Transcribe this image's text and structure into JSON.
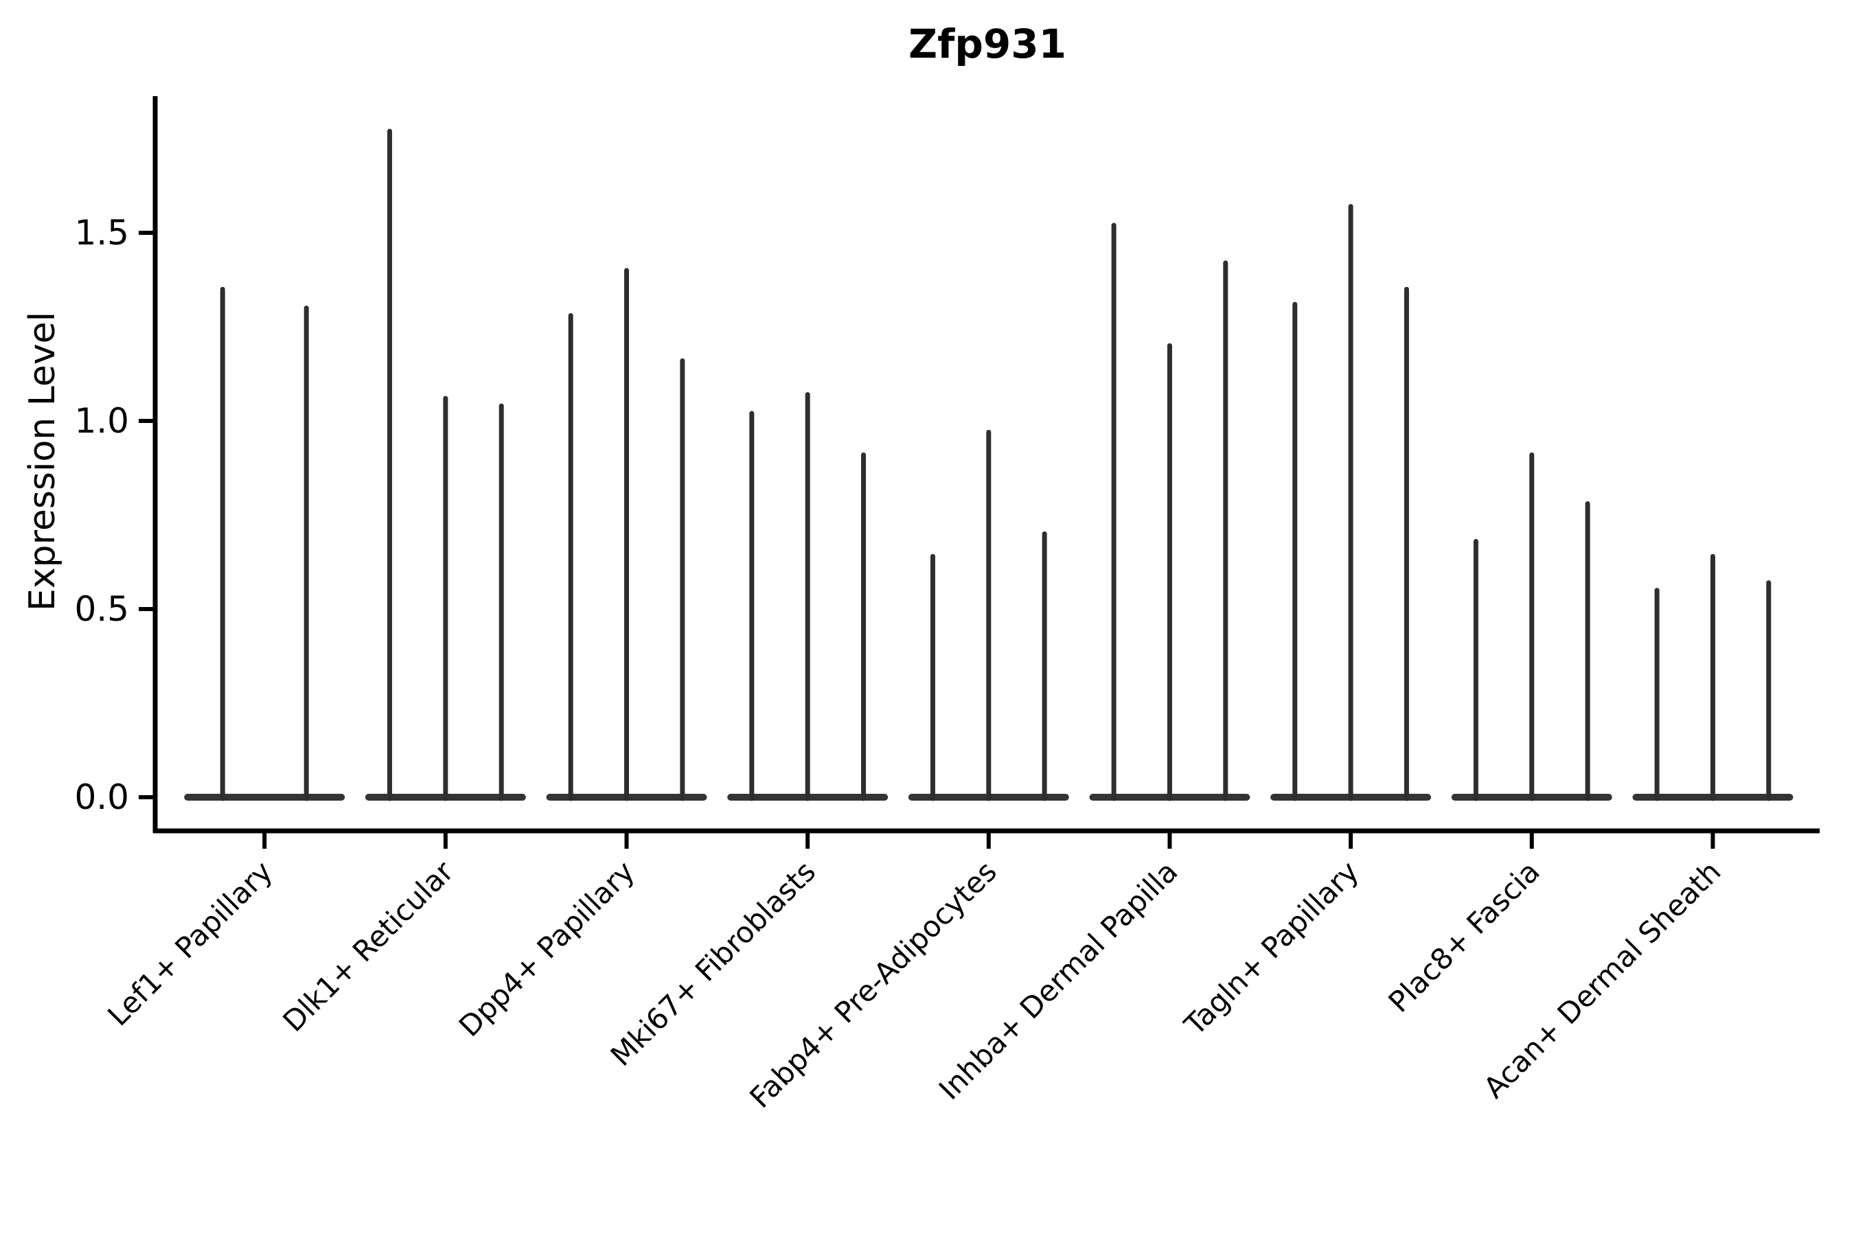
{
  "title": "Zfp931",
  "chart_data": {
    "type": "violin",
    "title": "Zfp931",
    "xlabel": "",
    "ylabel": "Expression Level",
    "categories": [
      "Lef1+ Papillary",
      "Dlk1+ Reticular",
      "Dpp4+ Papillary",
      "Mki67+ Fibroblasts",
      "Fabp4+ Pre-Adipocytes",
      "Inhba+ Dermal Papilla",
      "Tagln+ Papillary",
      "Plac8+ Fascia",
      "Acan+ Dermal Sheath"
    ],
    "series": [
      {
        "category": "Lef1+ Papillary",
        "violin_maxima": [
          1.35,
          1.3
        ]
      },
      {
        "category": "Dlk1+ Reticular",
        "violin_maxima": [
          1.77,
          1.06,
          1.04
        ]
      },
      {
        "category": "Dpp4+ Papillary",
        "violin_maxima": [
          1.28,
          1.4,
          1.16
        ]
      },
      {
        "category": "Mki67+ Fibroblasts",
        "violin_maxima": [
          1.02,
          1.07,
          0.91
        ]
      },
      {
        "category": "Fabp4+ Pre-Adipocytes",
        "violin_maxima": [
          0.64,
          0.97,
          0.7
        ]
      },
      {
        "category": "Inhba+ Dermal Papilla",
        "violin_maxima": [
          1.52,
          1.2,
          1.42
        ]
      },
      {
        "category": "Tagln+ Papillary",
        "violin_maxima": [
          1.31,
          1.57,
          1.35
        ]
      },
      {
        "category": "Plac8+ Fascia",
        "violin_maxima": [
          0.68,
          0.91,
          0.78
        ]
      },
      {
        "category": "Acan+ Dermal Sheath",
        "violin_maxima": [
          0.55,
          0.64,
          0.57
        ]
      }
    ],
    "yticks": [
      0.0,
      0.5,
      1.0,
      1.5
    ],
    "ytick_labels": [
      "0.0",
      "0.5",
      "1.0",
      "1.5"
    ],
    "ylim": [
      -0.09,
      1.86
    ],
    "x_tick_rotation_deg": 45,
    "grid": false,
    "legend_position": "none",
    "baseline_value": 0,
    "shape_note": "Seurat-style stacked violin: each violin collapses to a wide flat density disc at 0 with a thin spike rising to its maximum expression value.",
    "colors": {
      "violin": "#2e2e2e",
      "density_base": "#343434",
      "spine": "#000000",
      "text": "#000000",
      "background": "#ffffff"
    }
  }
}
